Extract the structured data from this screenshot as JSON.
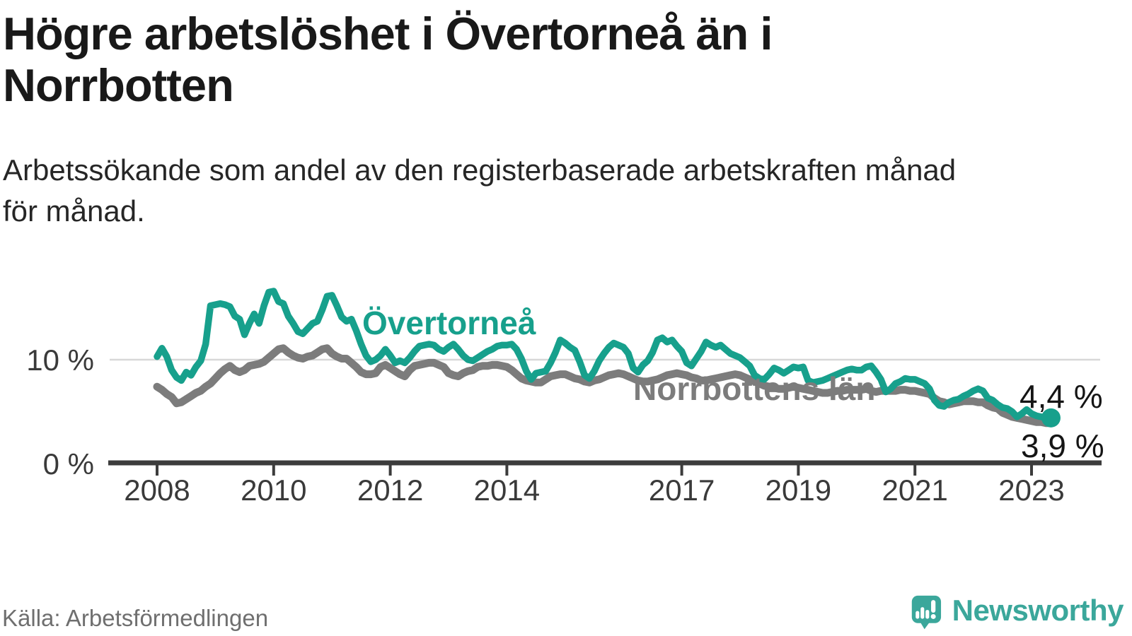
{
  "header": {
    "title": "Högre arbetslöshet i Övertorneå än i\nNorrbotten",
    "subtitle": "Arbetssökande som andel av den registerbaserade arbetskraften månad\nför månad."
  },
  "source": {
    "label": "Källa: Arbetsförmedlingen"
  },
  "branding": {
    "name": "Newsworthy",
    "logo_icon": "newsworthy-speech-bubble-bar-chart-icon",
    "logo_color": "#3BA79B"
  },
  "colors": {
    "teal_series": "#17A08C",
    "gray_series": "#7C7C7C",
    "gridline": "#D8D8D8",
    "axis": "#3C3C3C",
    "tick_label": "#3A3A3A",
    "value_label": "#151515",
    "title_text": "#191919",
    "source_text": "#6F6F6F"
  },
  "chart_data": {
    "type": "line",
    "unit": "%",
    "x_start": 2008,
    "x_step_months": 1,
    "x_end_approx": "2023-05",
    "ylim": [
      0,
      19
    ],
    "grid_values": [
      10
    ],
    "x_ticks": [
      2008,
      2010,
      2012,
      2014,
      2017,
      2019,
      2021,
      2023
    ],
    "y_ticks": [
      {
        "value": 10,
        "label": "10 %"
      },
      {
        "value": 0,
        "label": "0 %"
      }
    ],
    "legend_position": "inline-labels-on-chart",
    "series": [
      {
        "name": "Övertorneå",
        "color": "#17A08C",
        "stroke_width": 9.5,
        "end_dot": true,
        "end_label": "4,4 %",
        "values": [
          10.3,
          11.1,
          10.3,
          9.0,
          8.3,
          8.0,
          8.8,
          8.5,
          9.3,
          9.9,
          11.5,
          15.2,
          15.3,
          15.4,
          15.3,
          15.1,
          14.2,
          13.9,
          12.4,
          13.5,
          14.4,
          13.5,
          15.2,
          16.5,
          16.6,
          15.6,
          15.4,
          14.2,
          13.5,
          12.7,
          12.5,
          13.0,
          13.5,
          13.7,
          14.8,
          16.1,
          16.2,
          15.2,
          14.1,
          13.7,
          13.9,
          12.8,
          11.5,
          10.4,
          9.8,
          10.0,
          10.4,
          11.0,
          10.4,
          9.7,
          9.9,
          9.7,
          10.2,
          10.8,
          11.3,
          11.4,
          11.5,
          11.4,
          11.0,
          10.8,
          11.2,
          11.5,
          11.0,
          10.4,
          10.0,
          9.9,
          10.2,
          10.5,
          10.8,
          11.0,
          11.3,
          11.4,
          11.4,
          11.5,
          11.0,
          10.1,
          8.9,
          8.1,
          8.7,
          8.8,
          8.9,
          9.7,
          10.7,
          11.9,
          11.6,
          11.2,
          10.9,
          9.8,
          8.5,
          8.2,
          8.9,
          9.9,
          10.6,
          11.2,
          11.6,
          11.4,
          11.2,
          10.6,
          9.2,
          8.8,
          9.5,
          9.9,
          10.7,
          11.9,
          12.1,
          11.7,
          11.9,
          11.3,
          10.8,
          9.7,
          9.4,
          10.1,
          10.8,
          11.7,
          11.4,
          11.2,
          11.4,
          11.0,
          10.6,
          10.4,
          10.2,
          9.8,
          9.4,
          8.5,
          8.2,
          8.1,
          8.6,
          9.2,
          9.0,
          8.7,
          9.0,
          9.3,
          9.2,
          9.3,
          8.0,
          7.8,
          7.9,
          8.0,
          8.2,
          8.4,
          8.6,
          8.8,
          9.0,
          9.1,
          9.0,
          9.0,
          9.3,
          9.4,
          8.8,
          8.1,
          6.9,
          7.2,
          7.7,
          7.9,
          8.2,
          8.1,
          8.1,
          7.9,
          7.7,
          7.2,
          6.1,
          5.6,
          5.5,
          5.9,
          6.1,
          6.2,
          6.5,
          6.7,
          7.0,
          7.2,
          7.0,
          6.3,
          6.1,
          5.7,
          5.4,
          5.3,
          5.0,
          4.5,
          4.8,
          5.2,
          4.8,
          4.6,
          4.5,
          4.4,
          4.4
        ]
      },
      {
        "name": "Norrbottens län",
        "color": "#7C7C7C",
        "stroke_width": 11,
        "end_dot": false,
        "end_label": "3,9 %",
        "values": [
          7.4,
          7.1,
          6.7,
          6.4,
          5.8,
          5.9,
          6.2,
          6.5,
          6.8,
          7.0,
          7.4,
          7.7,
          8.2,
          8.7,
          9.1,
          9.4,
          9.0,
          8.8,
          9.0,
          9.4,
          9.5,
          9.6,
          9.8,
          10.2,
          10.6,
          11.0,
          11.1,
          10.7,
          10.4,
          10.2,
          10.1,
          10.3,
          10.4,
          10.7,
          11.0,
          11.1,
          10.6,
          10.3,
          10.1,
          10.1,
          9.7,
          9.3,
          8.8,
          8.6,
          8.6,
          8.7,
          9.3,
          9.5,
          9.2,
          8.9,
          8.6,
          8.4,
          9.0,
          9.4,
          9.5,
          9.6,
          9.7,
          9.7,
          9.5,
          9.3,
          8.7,
          8.5,
          8.4,
          8.7,
          8.9,
          9.0,
          9.3,
          9.4,
          9.4,
          9.5,
          9.5,
          9.4,
          9.3,
          9.0,
          8.6,
          8.2,
          8.0,
          7.9,
          7.8,
          7.8,
          8.1,
          8.4,
          8.5,
          8.6,
          8.6,
          8.4,
          8.2,
          8.1,
          7.9,
          7.8,
          8.0,
          8.1,
          8.3,
          8.5,
          8.6,
          8.7,
          8.6,
          8.4,
          8.2,
          8.0,
          7.9,
          7.9,
          8.0,
          8.1,
          8.3,
          8.5,
          8.6,
          8.7,
          8.6,
          8.5,
          8.3,
          8.2,
          8.0,
          8.0,
          8.1,
          8.2,
          8.3,
          8.4,
          8.5,
          8.6,
          8.5,
          8.3,
          8.1,
          7.9,
          7.7,
          7.5,
          7.4,
          7.3,
          7.2,
          7.2,
          7.3,
          7.4,
          7.3,
          7.2,
          7.1,
          7.0,
          6.9,
          6.8,
          6.8,
          6.9,
          7.0,
          7.0,
          7.1,
          7.1,
          7.1,
          7.1,
          7.2,
          7.0,
          6.9,
          7.0,
          7.0,
          7.0,
          7.0,
          7.1,
          7.1,
          7.0,
          7.0,
          6.9,
          6.8,
          6.7,
          6.3,
          6.0,
          5.9,
          5.7,
          5.8,
          5.9,
          6.0,
          6.0,
          6.0,
          5.9,
          5.9,
          5.6,
          5.4,
          5.3,
          4.9,
          4.7,
          4.5,
          4.4,
          4.3,
          4.2,
          4.1,
          4.0,
          4.0,
          3.9,
          3.9
        ]
      }
    ]
  }
}
